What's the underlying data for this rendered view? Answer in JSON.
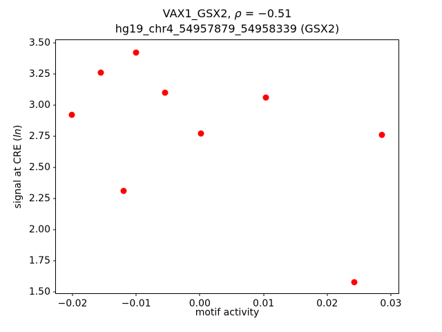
{
  "chart_data": {
    "type": "scatter",
    "title": "VAX1_GSX2, ρ = −0.51",
    "title_parts": [
      {
        "text": "VAX1_GSX2, ",
        "italic": false
      },
      {
        "text": "ρ",
        "italic": true
      },
      {
        "text": " = −0.51",
        "italic": false
      }
    ],
    "subtitle": "hg19_chr4_54957879_54958339 (GSX2)",
    "xlabel": "motif activity",
    "ylabel": "signal at CRE (ln)",
    "ylabel_parts": [
      {
        "text": "signal at CRE (",
        "italic": false
      },
      {
        "text": "ln",
        "italic": true
      },
      {
        "text": ")",
        "italic": false
      }
    ],
    "marker_color": "#ff0000",
    "axis_color": "#000000",
    "background_color": "#ffffff",
    "grid": false,
    "legend": null,
    "xlim": [
      -0.0226,
      0.0312
    ],
    "ylim": [
      1.49,
      3.52
    ],
    "xticks": [
      {
        "value": -0.02,
        "label": "−0.02"
      },
      {
        "value": -0.01,
        "label": "−0.01"
      },
      {
        "value": 0.0,
        "label": "0.00"
      },
      {
        "value": 0.01,
        "label": "0.01"
      },
      {
        "value": 0.02,
        "label": "0.02"
      },
      {
        "value": 0.03,
        "label": "0.03"
      }
    ],
    "yticks": [
      {
        "value": 1.5,
        "label": "1.50"
      },
      {
        "value": 1.75,
        "label": "1.75"
      },
      {
        "value": 2.0,
        "label": "2.00"
      },
      {
        "value": 2.25,
        "label": "2.25"
      },
      {
        "value": 2.5,
        "label": "2.50"
      },
      {
        "value": 2.75,
        "label": "2.75"
      },
      {
        "value": 3.0,
        "label": "3.00"
      },
      {
        "value": 3.25,
        "label": "3.25"
      },
      {
        "value": 3.5,
        "label": "3.50"
      }
    ],
    "points": [
      {
        "x": -0.0201,
        "y": 2.92
      },
      {
        "x": -0.0155,
        "y": 3.26
      },
      {
        "x": -0.012,
        "y": 2.31
      },
      {
        "x": -0.01,
        "y": 3.42
      },
      {
        "x": -0.0055,
        "y": 3.1
      },
      {
        "x": 0.0002,
        "y": 2.77
      },
      {
        "x": 0.0104,
        "y": 3.06
      },
      {
        "x": 0.0243,
        "y": 1.58
      },
      {
        "x": 0.0286,
        "y": 2.76
      }
    ]
  }
}
